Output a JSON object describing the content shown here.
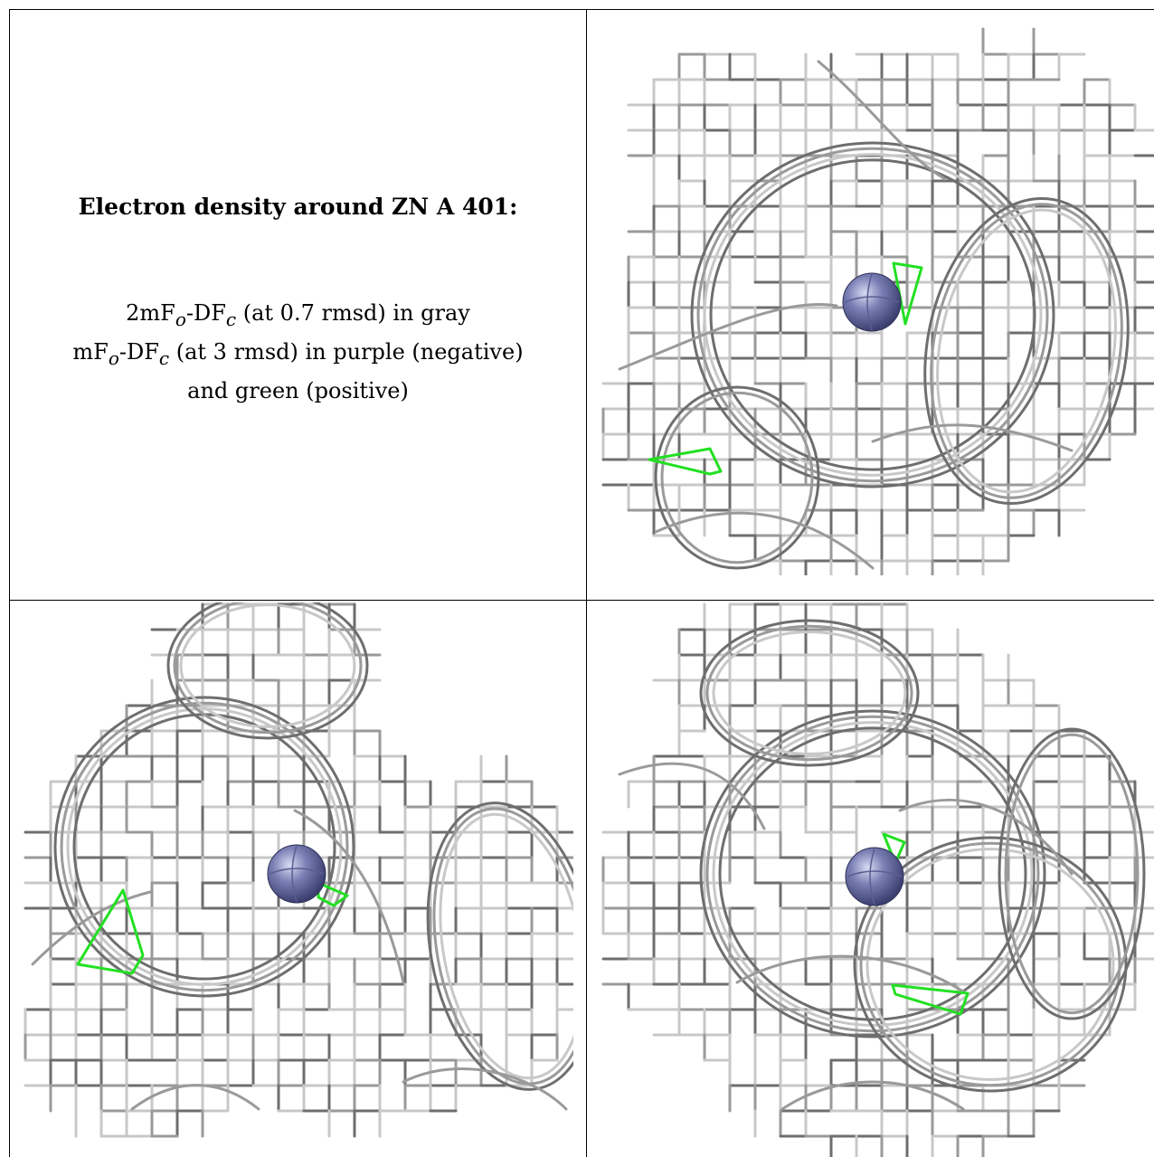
{
  "caption": {
    "title": "Electron density around ZN A 401:",
    "line1": {
      "prefix": "2mF",
      "sub1": "o",
      "mid": "-DF",
      "sub2": "c",
      "suffix": " (at 0.7 rmsd) in gray"
    },
    "line2": {
      "prefix": "mF",
      "sub1": "o",
      "mid": "-DF",
      "sub2": "c",
      "suffix": " (at 3 rmsd) in purple (negative)"
    },
    "line3": "and green (positive)"
  },
  "colors": {
    "mesh_dark": "#6e6e6e",
    "mesh_mid": "#9a9a9a",
    "mesh_light": "#c8c8c8",
    "positive": "#22e022",
    "atom": "#7a7fb4"
  },
  "panels": [
    {
      "id": "view-1",
      "atom": "ZN A 401"
    },
    {
      "id": "view-2",
      "atom": "ZN A 401"
    },
    {
      "id": "view-3",
      "atom": "ZN A 401"
    }
  ]
}
